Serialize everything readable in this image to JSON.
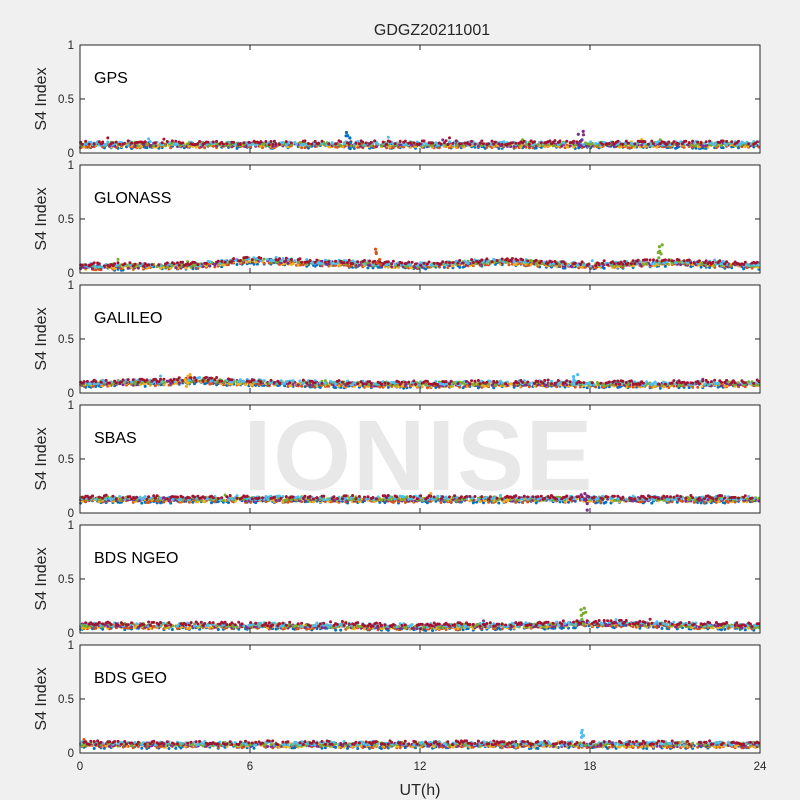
{
  "figure": {
    "title": "GDGZ20211001",
    "xlabel": "UT(h)",
    "watermark": "IONISE"
  },
  "chart_data": {
    "type": "scatter",
    "title": "GDGZ20211001",
    "xlabel": "UT(h)",
    "ylabel": "S4 Index",
    "xlim": [
      0,
      24
    ],
    "ylim": [
      0,
      1
    ],
    "xticks": [
      0,
      6,
      12,
      18,
      24
    ],
    "yticks": [
      0,
      0.5,
      1
    ],
    "grid": false,
    "legend": "none",
    "colors": [
      "#0072BD",
      "#D95319",
      "#EDB120",
      "#7E2F8E",
      "#77AC30",
      "#4DBEEE",
      "#A2142F"
    ],
    "panels": [
      {
        "label": "GPS",
        "trend": [
          [
            0,
            0.08
          ],
          [
            6,
            0.08
          ],
          [
            12,
            0.08
          ],
          [
            18,
            0.08
          ],
          [
            24,
            0.08
          ]
        ],
        "peaks": [
          [
            9.5,
            0.19
          ],
          [
            17.7,
            0.2
          ]
        ]
      },
      {
        "label": "GLONASS",
        "trend": [
          [
            0,
            0.06
          ],
          [
            4,
            0.07
          ],
          [
            6,
            0.12
          ],
          [
            8,
            0.1
          ],
          [
            12,
            0.07
          ],
          [
            15,
            0.11
          ],
          [
            18,
            0.07
          ],
          [
            21,
            0.1
          ],
          [
            24,
            0.07
          ]
        ],
        "peaks": [
          [
            10.5,
            0.22
          ],
          [
            20.5,
            0.26
          ]
        ]
      },
      {
        "label": "GALILEO",
        "trend": [
          [
            0,
            0.09
          ],
          [
            3,
            0.1
          ],
          [
            4,
            0.12
          ],
          [
            6,
            0.1
          ],
          [
            8,
            0.09
          ],
          [
            12,
            0.08
          ],
          [
            16,
            0.09
          ],
          [
            20,
            0.08
          ],
          [
            24,
            0.09
          ]
        ],
        "peaks": [
          [
            3.8,
            0.17
          ],
          [
            17.5,
            0.17
          ]
        ]
      },
      {
        "label": "SBAS",
        "trend": [
          [
            0,
            0.13
          ],
          [
            6,
            0.13
          ],
          [
            12,
            0.13
          ],
          [
            18,
            0.13
          ],
          [
            24,
            0.13
          ]
        ],
        "peaks": [
          [
            17.8,
            0.18
          ]
        ]
      },
      {
        "label": "BDS NGEO",
        "trend": [
          [
            0,
            0.07
          ],
          [
            6,
            0.07
          ],
          [
            12,
            0.06
          ],
          [
            16,
            0.07
          ],
          [
            18,
            0.09
          ],
          [
            20,
            0.08
          ],
          [
            24,
            0.06
          ]
        ],
        "peaks": [
          [
            17.8,
            0.23
          ]
        ]
      },
      {
        "label": "BDS GEO",
        "trend": [
          [
            0,
            0.08
          ],
          [
            6,
            0.08
          ],
          [
            12,
            0.08
          ],
          [
            18,
            0.08
          ],
          [
            24,
            0.08
          ]
        ],
        "peaks": [
          [
            17.8,
            0.21
          ]
        ]
      }
    ]
  }
}
